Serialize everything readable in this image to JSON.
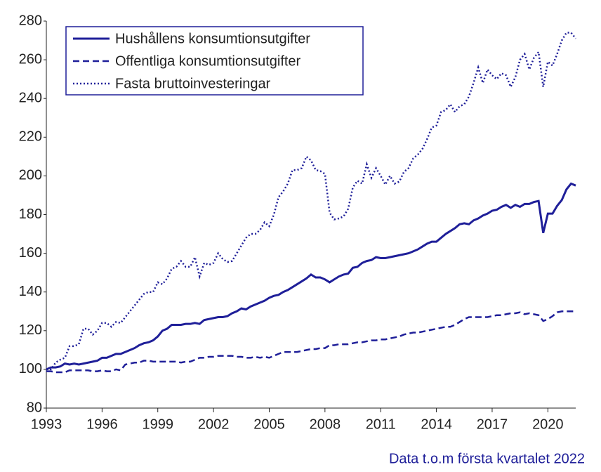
{
  "chart_data": {
    "type": "line",
    "caption": "Data t.o.m första kvartalet 2022",
    "x": [
      1993,
      1993.25,
      1993.5,
      1993.75,
      1994,
      1994.25,
      1994.5,
      1994.75,
      1995,
      1995.25,
      1995.5,
      1995.75,
      1996,
      1996.25,
      1996.5,
      1996.75,
      1997,
      1997.25,
      1997.5,
      1997.75,
      1998,
      1998.25,
      1998.5,
      1998.75,
      1999,
      1999.25,
      1999.5,
      1999.75,
      2000,
      2000.25,
      2000.5,
      2000.75,
      2001,
      2001.25,
      2001.5,
      2001.75,
      2002,
      2002.25,
      2002.5,
      2002.75,
      2003,
      2003.25,
      2003.5,
      2003.75,
      2004,
      2004.25,
      2004.5,
      2004.75,
      2005,
      2005.25,
      2005.5,
      2005.75,
      2006,
      2006.25,
      2006.5,
      2006.75,
      2007,
      2007.25,
      2007.5,
      2007.75,
      2008,
      2008.25,
      2008.5,
      2008.75,
      2009,
      2009.25,
      2009.5,
      2009.75,
      2010,
      2010.25,
      2010.5,
      2010.75,
      2011,
      2011.25,
      2011.5,
      2011.75,
      2012,
      2012.25,
      2012.5,
      2012.75,
      2013,
      2013.25,
      2013.5,
      2013.75,
      2014,
      2014.25,
      2014.5,
      2014.75,
      2015,
      2015.25,
      2015.5,
      2015.75,
      2016,
      2016.25,
      2016.5,
      2016.75,
      2017,
      2017.25,
      2017.5,
      2017.75,
      2018,
      2018.25,
      2018.5,
      2018.75,
      2019,
      2019.25,
      2019.5,
      2019.75,
      2020,
      2020.25,
      2020.5,
      2020.75,
      2021,
      2021.25,
      2021.5
    ],
    "series": [
      {
        "name": "Hushållens konsumtionsutgifter",
        "color": "#1f1f99",
        "style": "solid",
        "values": [
          100,
          101,
          101,
          101.5,
          103,
          102.5,
          103,
          102.5,
          103,
          103.5,
          104,
          104.5,
          106,
          106,
          107,
          108,
          108,
          109,
          110,
          111,
          112.5,
          113.5,
          114,
          115,
          117,
          120,
          121,
          123,
          123,
          123,
          123.5,
          123.5,
          124,
          123.5,
          125.5,
          126,
          126.5,
          127,
          127,
          127.5,
          129,
          130,
          131.5,
          131,
          132.5,
          133.5,
          134.5,
          135.5,
          137,
          138,
          138.5,
          140,
          141,
          142.5,
          144,
          145.5,
          147,
          149,
          147.5,
          147.5,
          146.5,
          145,
          146.5,
          148,
          149,
          149.5,
          152.5,
          153,
          155,
          156,
          156.5,
          158,
          157.5,
          157.5,
          158,
          158.5,
          159,
          159.5,
          160,
          161,
          162,
          163.5,
          165,
          166,
          166,
          168,
          170,
          171.5,
          173,
          175,
          175.5,
          175,
          177,
          178,
          179.5,
          180.5,
          182,
          182.5,
          184,
          185,
          183.5,
          185,
          184,
          185.5,
          185.5,
          186.5,
          187,
          170.5,
          180.5,
          180.5,
          184.5,
          187.5,
          193,
          196,
          195
        ]
      },
      {
        "name": "Offentliga konsumtionsutgifter",
        "color": "#1f1f99",
        "style": "dashed",
        "values": [
          99,
          99,
          98.5,
          98.5,
          98.5,
          99.5,
          99.5,
          99.5,
          99.5,
          99.5,
          99,
          99,
          99.5,
          99,
          99,
          100,
          99.5,
          102.5,
          103,
          103.5,
          103.5,
          104.5,
          104.5,
          104,
          104,
          104,
          104,
          104,
          104,
          103.5,
          104,
          104,
          105,
          106,
          106,
          106.5,
          106.5,
          107,
          107,
          107,
          107,
          106.5,
          106.5,
          106,
          106,
          106.5,
          106,
          106.5,
          106,
          107,
          108,
          109,
          109,
          109,
          109,
          109.5,
          110,
          110.5,
          110.5,
          111,
          111,
          112.5,
          112.5,
          113,
          113,
          113,
          113.5,
          114,
          114,
          114.5,
          115,
          115,
          115.5,
          115.5,
          116,
          116.5,
          117,
          118,
          118.5,
          119,
          119,
          119.5,
          120,
          120.5,
          121,
          121.5,
          122,
          122,
          123,
          124.5,
          126,
          127,
          127,
          127,
          127,
          127,
          127.5,
          128,
          128,
          128.5,
          129,
          129,
          129.5,
          128.5,
          129,
          128.5,
          128,
          125,
          126,
          127.5,
          129.5,
          130,
          130,
          130,
          130
        ]
      },
      {
        "name": "Fasta bruttoinvesteringar",
        "color": "#1f1f99",
        "style": "dotted",
        "values": [
          100,
          100,
          103.5,
          105,
          106,
          112,
          112,
          113,
          121,
          121,
          118,
          120,
          124,
          124,
          122,
          124.5,
          124,
          127,
          130,
          133,
          136,
          139,
          140,
          140,
          145,
          144,
          147,
          152,
          153,
          156,
          153,
          153,
          158,
          148,
          155,
          154,
          155,
          160,
          157,
          155.5,
          156,
          160,
          164,
          168,
          170,
          170,
          172,
          176,
          174,
          180,
          189,
          192,
          196,
          203,
          203,
          204,
          210,
          208,
          203,
          202.5,
          201,
          181,
          177.5,
          178,
          179,
          183,
          194,
          197.5,
          196,
          206,
          199,
          204,
          200,
          195.5,
          200,
          196,
          197,
          202,
          204,
          209,
          211,
          214,
          219,
          225,
          226,
          233,
          234,
          237,
          233,
          236,
          237,
          241,
          248,
          256,
          248,
          255,
          252,
          250,
          253,
          252,
          246,
          251,
          260,
          263,
          255,
          261,
          264,
          246,
          259,
          257,
          263,
          270,
          274,
          274,
          271
        ]
      }
    ],
    "xlim": [
      1993,
      2021.5
    ],
    "ylim": [
      80,
      280
    ],
    "xticks": [
      1993,
      1996,
      1999,
      2002,
      2005,
      2008,
      2011,
      2014,
      2017,
      2020
    ],
    "yticks": [
      80,
      100,
      120,
      140,
      160,
      180,
      200,
      220,
      240,
      260,
      280
    ],
    "grid": false,
    "legend": "upper left"
  }
}
